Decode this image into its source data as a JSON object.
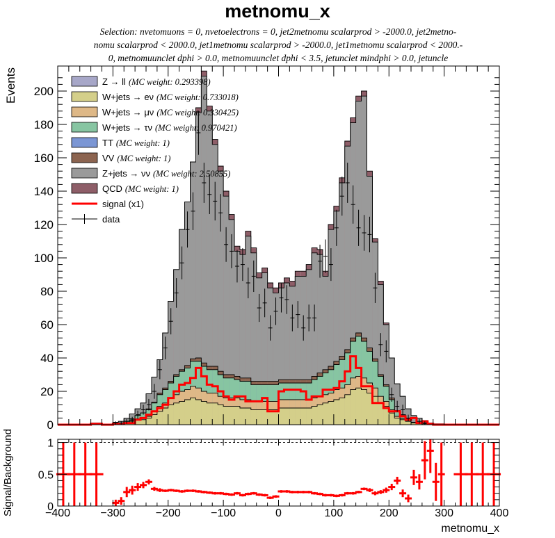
{
  "title": "metnomu_x",
  "subtitle_lines": [
    "Selection: nvetomuons = 0, nvetoelectrons = 0, jet2metnomu scalarprod > -2000.0, jet2metno-",
    "nomu scalarprod < 2000.0, jet1metnomu scalarprod > -2000.0, jet1metnomu scalarprod < 2000.-",
    "0, metnomuunclet dphi > 0.0, metnomuunclet dphi < 3.5, jetunclet mindphi > 0.0, jetuncle"
  ],
  "chart_data": [
    {
      "type": "bar",
      "stacked": true,
      "xlabel": "metnomu_x",
      "ylabel": "Events",
      "xlim": [
        -400,
        400
      ],
      "ylim": [
        0,
        215
      ],
      "yticks": [
        0,
        20,
        40,
        60,
        80,
        100,
        120,
        140,
        160,
        180,
        200
      ],
      "xticks": [
        -400,
        -300,
        -200,
        -100,
        0,
        100,
        200,
        300,
        400
      ],
      "bin_edges": [
        -400,
        -380,
        -360,
        -340,
        -320,
        -300,
        -290,
        -280,
        -270,
        -260,
        -250,
        -240,
        -230,
        -220,
        -210,
        -200,
        -190,
        -180,
        -170,
        -160,
        -150,
        -140,
        -130,
        -120,
        -110,
        -100,
        -90,
        -80,
        -70,
        -60,
        -50,
        -40,
        -30,
        -20,
        -10,
        0,
        10,
        20,
        30,
        40,
        50,
        60,
        70,
        80,
        90,
        100,
        110,
        120,
        130,
        140,
        150,
        160,
        170,
        180,
        190,
        200,
        210,
        220,
        230,
        240,
        250,
        260,
        270,
        280,
        290,
        300,
        320,
        340,
        360,
        380,
        400
      ],
      "series": [
        {
          "name": "Z → ll",
          "note": "(MC weight: 0.293398)",
          "color": "#a7a7c8",
          "values": [
            0,
            0,
            0,
            0,
            0,
            0,
            0,
            0,
            0,
            0,
            0,
            0,
            0,
            0,
            0,
            0,
            0,
            0,
            0,
            0,
            0,
            0,
            0,
            0,
            0,
            0,
            0,
            0,
            0,
            0,
            0,
            0,
            0,
            0,
            0,
            0,
            0,
            0,
            0,
            0,
            0,
            0,
            0,
            0,
            0,
            0,
            0,
            0,
            0,
            0,
            0,
            0,
            0,
            0,
            0,
            0,
            0,
            0,
            0,
            0,
            0,
            0,
            0,
            0,
            0,
            0,
            0,
            0,
            0,
            0
          ]
        },
        {
          "name": "W+jets → eν",
          "note": "(MC weight: 0.733018)",
          "color": "#d4cf8a",
          "values": [
            0,
            0,
            0,
            0.5,
            0,
            0.5,
            1,
            1,
            2,
            3,
            3,
            4,
            6,
            8,
            10,
            12,
            13,
            14,
            15,
            16,
            15,
            14,
            13,
            13,
            12,
            11,
            11,
            11,
            10,
            10,
            9,
            9,
            9,
            9,
            9,
            10,
            10,
            10,
            10,
            10,
            10,
            11,
            12,
            13,
            14,
            15,
            16,
            18,
            21,
            22,
            21,
            19,
            17,
            13,
            11,
            7,
            4,
            3,
            2,
            1,
            1,
            0.5,
            0,
            0,
            0,
            0,
            0,
            0,
            0,
            0
          ]
        },
        {
          "name": "W+jets → μν",
          "note": "(MC weight: 0.330425)",
          "color": "#deb887",
          "values": [
            0,
            0,
            0,
            0,
            0,
            0,
            0,
            0,
            0.5,
            0.5,
            1,
            1,
            2,
            3,
            3,
            4,
            5,
            6,
            6,
            7,
            7,
            6,
            6,
            6,
            5,
            5,
            5,
            5,
            5,
            5,
            5,
            5,
            5,
            5,
            5,
            5,
            5,
            5,
            5,
            5,
            5,
            5,
            5,
            5,
            5,
            6,
            6,
            6,
            7,
            7,
            7,
            6,
            5,
            4,
            3,
            2,
            1,
            0.5,
            0.5,
            0,
            0,
            0,
            0,
            0,
            0,
            0,
            0,
            0,
            0,
            0
          ]
        },
        {
          "name": "W+jets → τν",
          "note": "(MC weight: 0.970421)",
          "color": "#87c5a2",
          "values": [
            0,
            0,
            0,
            0,
            0,
            0,
            0,
            1,
            1,
            2,
            3,
            4,
            5,
            7,
            8,
            9,
            11,
            12,
            13,
            15,
            16,
            15,
            14,
            14,
            13,
            12,
            12,
            11,
            11,
            11,
            10,
            10,
            10,
            10,
            10,
            10,
            10,
            10,
            10,
            10,
            10,
            11,
            12,
            13,
            14,
            15,
            17,
            19,
            22,
            24,
            22,
            19,
            16,
            12,
            9,
            6,
            3,
            2,
            1,
            0.5,
            0,
            0,
            0,
            0,
            0,
            0,
            0,
            0,
            0,
            0
          ]
        },
        {
          "name": "TT",
          "note": "(MC weight: 1)",
          "color": "#7b96d4",
          "values": [
            0,
            0,
            0,
            0,
            0,
            0,
            0,
            0,
            0,
            0,
            0,
            0,
            0,
            0,
            0,
            0,
            0,
            0,
            0,
            0,
            0,
            0,
            0,
            0,
            0,
            0,
            0,
            0,
            0,
            0,
            0,
            0,
            0,
            0,
            0,
            0,
            0,
            0,
            0,
            0,
            0,
            0,
            0,
            0,
            0,
            0,
            0,
            0,
            0,
            0,
            0,
            0,
            0,
            0,
            0,
            0,
            0,
            0,
            0,
            0,
            0,
            0,
            0,
            0,
            0,
            0,
            0,
            0,
            0,
            0
          ]
        },
        {
          "name": "VV",
          "note": "(MC weight: 1)",
          "color": "#8c6450",
          "values": [
            0,
            0,
            0,
            0,
            0,
            0,
            0,
            0,
            0,
            0,
            0,
            0.5,
            0.5,
            1,
            1,
            1,
            1,
            1,
            1.5,
            1.5,
            2,
            2,
            2,
            2,
            2,
            2,
            2,
            2,
            2,
            2,
            2,
            2,
            2,
            2,
            2,
            2,
            2,
            2,
            2,
            2,
            2,
            2,
            2,
            2,
            2,
            2,
            2,
            2,
            2,
            2,
            2,
            2,
            1.5,
            1,
            1,
            1,
            0.5,
            0.5,
            0,
            0,
            0,
            0,
            0,
            0,
            0,
            0,
            0,
            0,
            0,
            0
          ]
        },
        {
          "name": "Z+jets → νν",
          "note": "(MC weight: 2.50855)",
          "color": "#9a9a9a",
          "values": [
            0,
            0,
            0,
            0.5,
            0,
            1,
            1,
            2,
            3,
            4,
            6,
            9,
            15,
            20,
            33,
            48,
            63,
            84,
            98,
            118,
            147,
            172,
            153,
            133,
            120,
            107,
            93,
            75,
            74,
            85,
            77,
            62,
            65,
            56,
            53,
            55,
            58,
            56,
            62,
            62,
            66,
            74,
            71,
            56,
            82,
            90,
            104,
            122,
            129,
            139,
            145,
            103,
            70,
            54,
            36,
            24,
            16,
            11,
            6,
            4,
            3,
            2,
            1,
            0.5,
            0.5,
            0,
            0,
            0,
            0,
            0
          ]
        },
        {
          "name": "QCD",
          "note": "(MC weight: 1)",
          "color": "#8e5e68",
          "values": [
            0,
            0,
            0,
            0,
            0,
            0,
            0,
            0,
            0,
            0,
            0,
            0,
            0,
            0,
            0,
            0,
            0,
            0,
            0,
            0,
            3,
            3,
            3,
            3,
            3,
            3,
            3,
            3,
            3,
            3,
            3,
            3,
            3,
            3,
            3,
            3,
            3,
            3,
            3,
            3,
            3,
            3,
            3,
            3,
            3,
            3,
            3,
            3,
            3,
            3,
            3,
            3,
            2,
            2,
            1,
            0,
            0,
            0,
            0,
            0,
            0,
            0,
            0,
            0,
            0,
            0,
            0,
            0,
            0,
            0
          ]
        }
      ],
      "signal": {
        "name": "signal (x1)",
        "color": "#ff0000",
        "values": [
          0,
          0,
          0,
          0.5,
          0,
          0.5,
          0.5,
          1,
          1,
          3,
          4,
          6,
          8,
          10,
          12,
          16,
          20,
          24,
          25,
          28,
          34,
          29,
          24,
          23,
          20,
          17,
          15,
          17,
          17,
          14,
          14,
          14,
          16,
          8,
          8,
          20,
          21,
          21,
          21,
          20,
          15,
          17,
          17,
          21,
          21,
          22,
          26,
          32,
          41,
          34,
          23,
          23,
          13,
          13,
          10,
          8,
          8,
          5,
          3,
          4,
          1,
          2,
          0.5,
          0,
          0,
          0,
          0,
          0,
          0,
          0
        ]
      },
      "data": {
        "name": "data",
        "values": [
          0,
          0,
          0,
          0,
          0,
          1,
          1,
          2,
          3,
          6,
          9,
          12,
          20,
          33,
          46,
          62,
          79,
          97,
          117,
          128,
          175,
          145,
          138,
          134,
          127,
          108,
          104,
          95,
          96,
          85,
          89,
          70,
          73,
          58,
          68,
          76,
          75,
          64,
          66,
          58,
          64,
          64,
          98,
          101,
          96,
          118,
          137,
          145,
          132,
          118,
          115,
          114,
          82,
          48,
          44,
          18,
          11,
          9,
          4,
          0,
          2,
          1,
          0,
          0,
          0,
          0,
          0,
          0,
          0,
          0
        ]
      },
      "legend_position": "top-left"
    },
    {
      "type": "scatter",
      "xlabel": "metnomu_x",
      "ylabel": "Signal/Background",
      "xlim": [
        -400,
        400
      ],
      "ylim": [
        0,
        1.05
      ],
      "yticks": [
        0,
        0.5,
        1
      ],
      "reference_line": 1,
      "x": [
        -390,
        -370,
        -350,
        -330,
        -295,
        -285,
        -275,
        -265,
        -255,
        -245,
        -235,
        -225,
        -215,
        -205,
        -195,
        -185,
        -175,
        -165,
        -155,
        -145,
        -135,
        -125,
        -115,
        -105,
        -95,
        -85,
        -75,
        -65,
        -55,
        -45,
        -35,
        -25,
        -15,
        -5,
        5,
        15,
        25,
        35,
        45,
        55,
        65,
        75,
        85,
        95,
        105,
        115,
        125,
        135,
        145,
        155,
        165,
        175,
        185,
        195,
        205,
        215,
        225,
        235,
        245,
        255,
        265,
        275,
        285,
        295,
        330,
        350,
        370,
        390
      ],
      "values": [
        0.5,
        0.5,
        0.5,
        0.5,
        0.05,
        0.08,
        0.22,
        0.25,
        0.3,
        0.33,
        0.38,
        0.27,
        0.25,
        0.24,
        0.25,
        0.24,
        0.23,
        0.24,
        0.24,
        0.23,
        0.22,
        0.21,
        0.2,
        0.2,
        0.19,
        0.18,
        0.2,
        0.17,
        0.19,
        0.2,
        0.18,
        0.17,
        0.13,
        0.15,
        0.23,
        0.23,
        0.22,
        0.22,
        0.22,
        0.22,
        0.2,
        0.19,
        0.17,
        0.17,
        0.16,
        0.17,
        0.2,
        0.2,
        0.22,
        0.27,
        0.25,
        0.2,
        0.22,
        0.25,
        0.3,
        0.4,
        0.2,
        0.12,
        0.45,
        0.38,
        0.72,
        0.87,
        0.38,
        0.5,
        0.5,
        0.5,
        0.5,
        0.5
      ],
      "errors": [
        0.5,
        0.5,
        0.5,
        0.5,
        0.05,
        0.06,
        0.08,
        0.07,
        0.06,
        0.05,
        0.04,
        0.03,
        0.03,
        0.02,
        0.02,
        0.02,
        0.02,
        0.02,
        0.02,
        0.02,
        0.02,
        0.02,
        0.02,
        0.02,
        0.02,
        0.02,
        0.02,
        0.02,
        0.02,
        0.02,
        0.02,
        0.02,
        0.02,
        0.02,
        0.02,
        0.02,
        0.02,
        0.02,
        0.02,
        0.02,
        0.02,
        0.02,
        0.02,
        0.02,
        0.02,
        0.02,
        0.02,
        0.02,
        0.02,
        0.02,
        0.03,
        0.03,
        0.03,
        0.04,
        0.05,
        0.06,
        0.06,
        0.06,
        0.12,
        0.12,
        0.3,
        0.35,
        0.3,
        0.5,
        0.5,
        0.5,
        0.5,
        0.5
      ],
      "color": "#ff0000"
    }
  ]
}
